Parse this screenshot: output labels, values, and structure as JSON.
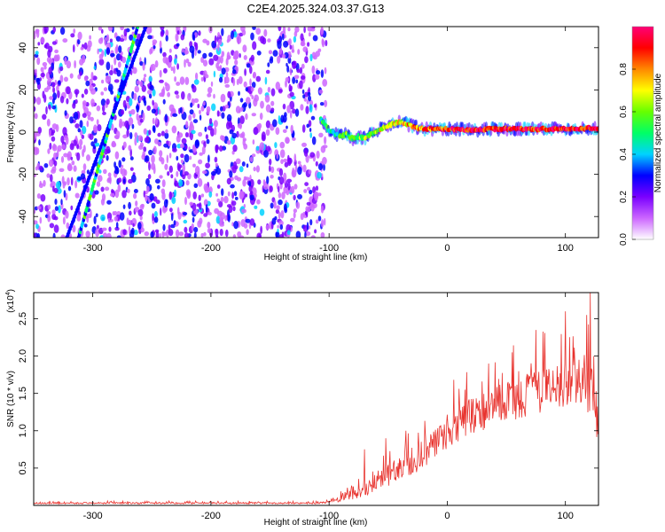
{
  "title": "C2E4.2025.324.03.37.G13",
  "chart_data": [
    {
      "type": "heatmap",
      "name": "spectrogram",
      "xlabel": "Height of straight line (km)",
      "ylabel": "Frequency (Hz)",
      "xlim": [
        -350,
        128
      ],
      "ylim": [
        -50,
        50
      ],
      "x_ticks": [
        "-300",
        "-200",
        "-100",
        "0",
        "100"
      ],
      "x_tick_values": [
        -300,
        -200,
        -100,
        0,
        100
      ],
      "y_ticks": [
        "-40",
        "-20",
        "0",
        "20",
        "40"
      ],
      "y_tick_values": [
        -40,
        -20,
        0,
        20,
        40
      ],
      "noise_region_x": [
        -350,
        -102
      ],
      "signal_trace": {
        "x": [
          -107,
          -100,
          -95,
          -90,
          -85,
          -80,
          -75,
          -70,
          -65,
          -60,
          -55,
          -50,
          -45,
          -40,
          -35,
          -30,
          -25,
          -20,
          -10,
          0,
          20,
          40,
          60,
          80,
          100,
          128
        ],
        "y": [
          6,
          1,
          -1,
          -2,
          -1,
          -3,
          -2,
          -3,
          -1,
          0,
          2,
          3,
          4,
          5,
          4,
          3,
          2,
          1.5,
          1.5,
          1.5,
          1,
          1.5,
          1.5,
          1.5,
          1.5,
          2
        ]
      },
      "diagonal_traces": [
        {
          "x": [
            -322,
            -255
          ],
          "y": [
            -50,
            50
          ]
        },
        {
          "x": [
            -312,
            -262
          ],
          "y": [
            -50,
            50
          ]
        }
      ],
      "colorbar": {
        "label": "Normalized spectral amplitude",
        "range": [
          0,
          1
        ],
        "ticks": [
          "0.0",
          "0.2",
          "0.4",
          "0.6",
          "0.8"
        ],
        "tick_values": [
          0.0,
          0.2,
          0.4,
          0.6,
          0.8
        ],
        "colors": [
          "#ffffff",
          "#cc66ff",
          "#7a00ff",
          "#0000ff",
          "#00d2ff",
          "#00ff66",
          "#66ff00",
          "#ffff00",
          "#ff8800",
          "#ff0000",
          "#ff0077"
        ]
      }
    },
    {
      "type": "line",
      "name": "snr",
      "xlabel": "Height of straight line (km)",
      "ylabel": "SNR (10 * v/v)",
      "y_multiplier": "(x10",
      "y_multiplier_exp": "4",
      "y_multiplier_close": ")",
      "xlim": [
        -350,
        128
      ],
      "ylim": [
        0,
        2.85
      ],
      "x_ticks": [
        "-300",
        "-200",
        "-100",
        "0",
        "100"
      ],
      "x_tick_values": [
        -300,
        -200,
        -100,
        0,
        100
      ],
      "y_ticks": [
        "0.5",
        "1.0",
        "1.5",
        "2.0",
        "2.5"
      ],
      "y_tick_values": [
        0.5,
        1.0,
        1.5,
        2.0,
        2.5
      ],
      "color": "#e8332e",
      "envelope": {
        "x": [
          -350,
          -110,
          -100,
          -90,
          -80,
          -70,
          -60,
          -50,
          -40,
          -30,
          -20,
          -10,
          0,
          10,
          20,
          30,
          40,
          50,
          60,
          70,
          80,
          90,
          100,
          110,
          115,
          120,
          125,
          128
        ],
        "base": [
          0.02,
          0.02,
          0.03,
          0.05,
          0.08,
          0.12,
          0.18,
          0.25,
          0.32,
          0.4,
          0.5,
          0.6,
          0.75,
          0.85,
          0.95,
          1.0,
          1.05,
          1.1,
          1.15,
          1.2,
          1.25,
          1.25,
          1.3,
          1.3,
          1.3,
          1.2,
          1.0,
          0.7
        ],
        "amp": [
          0.04,
          0.04,
          0.05,
          0.15,
          0.25,
          0.35,
          0.45,
          0.55,
          0.6,
          0.7,
          0.75,
          0.8,
          0.85,
          0.9,
          0.9,
          0.95,
          1.0,
          1.0,
          1.05,
          1.1,
          1.1,
          1.15,
          1.2,
          1.25,
          1.3,
          1.5,
          1.6,
          1.2
        ]
      },
      "peaks": [
        {
          "x": -70,
          "y": 0.75
        },
        {
          "x": -52,
          "y": 0.9
        },
        {
          "x": -35,
          "y": 1.0
        },
        {
          "x": 15,
          "y": 1.55
        },
        {
          "x": 35,
          "y": 1.9
        },
        {
          "x": 55,
          "y": 2.05
        },
        {
          "x": 75,
          "y": 2.35
        },
        {
          "x": 100,
          "y": 2.6
        },
        {
          "x": 118,
          "y": 2.55
        },
        {
          "x": 121,
          "y": 2.85
        },
        {
          "x": 124,
          "y": 2.0
        }
      ]
    }
  ]
}
